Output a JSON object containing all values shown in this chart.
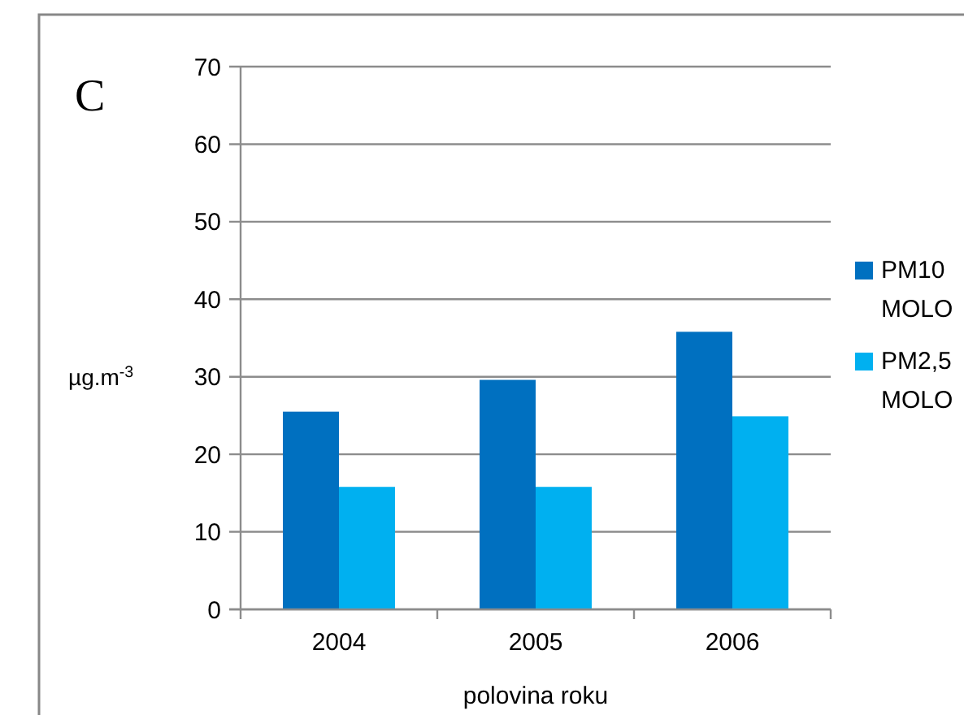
{
  "chart_data": {
    "type": "bar",
    "title": "C",
    "xlabel": "polovina roku",
    "ylabel": "µg.m$^{-3}$",
    "categories": [
      "2004",
      "2005",
      "2006"
    ],
    "series": [
      {
        "name": "PM10 MOLO",
        "color": "#0070c0",
        "values": [
          25.5,
          29.6,
          35.8
        ]
      },
      {
        "name": "PM2,5 MOLO",
        "color": "#00b0f0",
        "values": [
          15.8,
          15.8,
          24.9
        ]
      }
    ],
    "ylim": [
      0,
      70
    ],
    "yticks": [
      0,
      10,
      20,
      30,
      40,
      50,
      60,
      70
    ],
    "grid": "y",
    "legend": "right"
  }
}
